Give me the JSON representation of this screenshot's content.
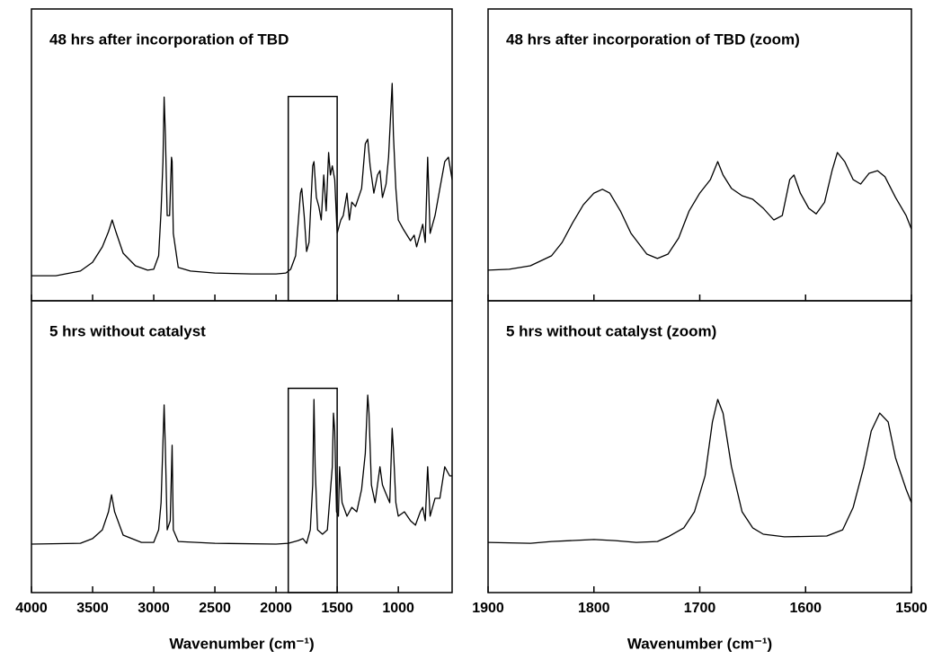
{
  "chart_data": [
    {
      "type": "line",
      "title": "48 hrs after incorporation of TBD",
      "color": "#000000",
      "xlim": [
        4000,
        560
      ],
      "ylim": [
        0,
        100
      ],
      "xticks": [
        4000,
        3500,
        3000,
        2500,
        2000,
        1500,
        1000
      ],
      "xtick_labels": false,
      "zoom_box": [
        1900,
        1500
      ],
      "x": [
        4000,
        3800,
        3600,
        3500,
        3420,
        3370,
        3340,
        3310,
        3250,
        3150,
        3050,
        3000,
        2960,
        2940,
        2925,
        2915,
        2905,
        2890,
        2870,
        2855,
        2850,
        2840,
        2800,
        2700,
        2500,
        2200,
        2000,
        1920,
        1880,
        1840,
        1800,
        1790,
        1770,
        1750,
        1730,
        1700,
        1690,
        1670,
        1650,
        1630,
        1610,
        1590,
        1570,
        1555,
        1540,
        1520,
        1500,
        1480,
        1470,
        1450,
        1420,
        1400,
        1380,
        1350,
        1300,
        1270,
        1250,
        1230,
        1200,
        1170,
        1150,
        1130,
        1100,
        1080,
        1060,
        1050,
        1040,
        1020,
        1000,
        960,
        900,
        870,
        850,
        820,
        800,
        780,
        760,
        740,
        700,
        660,
        620,
        590,
        560
      ],
      "values": [
        8.6,
        8.6,
        10.2,
        13.2,
        18.5,
        23.7,
        27.7,
        23.7,
        16.3,
        12,
        10.5,
        10.8,
        15.4,
        30.8,
        47.7,
        69.8,
        56.9,
        29.2,
        29.2,
        49.2,
        47.7,
        23.1,
        11.4,
        10.2,
        9.5,
        9.2,
        9.2,
        9.5,
        10.8,
        15.4,
        36.9,
        38.5,
        29.2,
        16.9,
        20,
        46.2,
        47.7,
        35.4,
        32.3,
        27.7,
        43.1,
        30.8,
        50.8,
        43.1,
        46.2,
        41.5,
        23.1,
        26.2,
        27.7,
        29.2,
        36.9,
        27.7,
        33.8,
        32.3,
        38.5,
        53.8,
        55.4,
        46.2,
        36.9,
        43.1,
        44.6,
        35.4,
        40,
        49.2,
        66.2,
        74.5,
        56.9,
        38.5,
        27.7,
        24.6,
        20.6,
        22.5,
        18.5,
        23.1,
        26.2,
        20,
        49.2,
        23.1,
        29.2,
        38.5,
        47.7,
        49.2,
        41.5
      ]
    },
    {
      "type": "line",
      "title": "48 hrs after incorporation of TBD (zoom)",
      "color": "#000000",
      "xlim": [
        1900,
        1500
      ],
      "ylim": [
        0,
        100
      ],
      "xticks": [
        1900,
        1800,
        1700,
        1600,
        1500
      ],
      "xtick_labels": false,
      "x": [
        1900,
        1880,
        1860,
        1840,
        1830,
        1820,
        1810,
        1800,
        1792,
        1785,
        1775,
        1765,
        1750,
        1740,
        1730,
        1720,
        1710,
        1700,
        1690,
        1683,
        1678,
        1670,
        1660,
        1650,
        1640,
        1630,
        1622,
        1615,
        1611,
        1605,
        1597,
        1590,
        1582,
        1575,
        1570,
        1563,
        1555,
        1548,
        1540,
        1532,
        1525,
        1515,
        1505,
        1500
      ],
      "values": [
        10.5,
        10.8,
        12,
        15.4,
        20,
        26.8,
        32.9,
        36.9,
        38.2,
        36.9,
        30.8,
        23.1,
        16,
        14.5,
        16,
        21.5,
        30.8,
        36.9,
        41.5,
        47.7,
        43.1,
        38.5,
        36,
        34.8,
        31.7,
        27.7,
        29.2,
        41.5,
        43.1,
        36.9,
        31.7,
        29.8,
        33.8,
        44.6,
        50.8,
        47.7,
        41.5,
        40,
        43.7,
        44.6,
        42.5,
        35.4,
        29.2,
        24.6
      ]
    },
    {
      "type": "line",
      "title": "5 hrs without catalyst",
      "color": "#000000",
      "xlabel": "Wavenumber (cm⁻¹)",
      "xlim": [
        4000,
        560
      ],
      "ylim": [
        0,
        100
      ],
      "xticks": [
        4000,
        3500,
        3000,
        2500,
        2000,
        1500,
        1000
      ],
      "xtick_labels": true,
      "zoom_box": [
        1900,
        1500
      ],
      "x": [
        4000,
        3600,
        3500,
        3420,
        3370,
        3345,
        3320,
        3250,
        3100,
        3000,
        2960,
        2940,
        2915,
        2905,
        2890,
        2865,
        2850,
        2840,
        2800,
        2500,
        2000,
        1900,
        1820,
        1780,
        1750,
        1720,
        1700,
        1690,
        1680,
        1660,
        1620,
        1580,
        1540,
        1530,
        1520,
        1505,
        1490,
        1480,
        1460,
        1420,
        1380,
        1340,
        1300,
        1270,
        1250,
        1240,
        1220,
        1190,
        1150,
        1130,
        1100,
        1070,
        1050,
        1040,
        1020,
        1000,
        950,
        900,
        860,
        820,
        800,
        780,
        760,
        740,
        700,
        660,
        620,
        580,
        560
      ],
      "values": [
        16.6,
        16.9,
        18.5,
        21.5,
        27.7,
        33.5,
        27.7,
        19.7,
        17.2,
        17.2,
        21.5,
        30.8,
        64.3,
        49.2,
        21.5,
        24.6,
        50.5,
        21.5,
        17.5,
        16.9,
        16.6,
        16.9,
        17.8,
        18.5,
        16.9,
        21.5,
        36.9,
        66.2,
        43.1,
        21.5,
        20,
        21.5,
        43.1,
        61.5,
        55.4,
        27.7,
        26.2,
        43.1,
        30.8,
        26.2,
        29.2,
        27.7,
        35.4,
        47.7,
        67.7,
        61.5,
        36.9,
        30.8,
        43.1,
        36.9,
        33.8,
        30.8,
        56.3,
        49.2,
        30.8,
        26.2,
        27.7,
        24.6,
        23.1,
        27.7,
        29.2,
        24.6,
        43.1,
        26.2,
        32.3,
        32.3,
        43.1,
        40,
        40
      ]
    },
    {
      "type": "line",
      "title": "5 hrs without catalyst (zoom)",
      "color": "#000000",
      "xlabel": "Wavenumber (cm⁻¹)",
      "xlim": [
        1900,
        1500
      ],
      "ylim": [
        0,
        100
      ],
      "xticks": [
        1900,
        1800,
        1700,
        1600,
        1500
      ],
      "xtick_labels": true,
      "x": [
        1900,
        1860,
        1840,
        1800,
        1780,
        1760,
        1740,
        1730,
        1715,
        1705,
        1695,
        1688,
        1683,
        1678,
        1670,
        1660,
        1650,
        1640,
        1620,
        1580,
        1565,
        1555,
        1545,
        1538,
        1530,
        1522,
        1515,
        1505,
        1500
      ],
      "values": [
        17.2,
        16.9,
        17.5,
        18.2,
        17.8,
        17.2,
        17.5,
        19.1,
        22.2,
        27.7,
        40,
        58.5,
        66.2,
        61.5,
        43.1,
        27.7,
        22.2,
        20,
        19.1,
        19.4,
        21.5,
        29.2,
        43.1,
        55.4,
        61.5,
        58.5,
        46.2,
        35.4,
        30.8
      ]
    }
  ]
}
